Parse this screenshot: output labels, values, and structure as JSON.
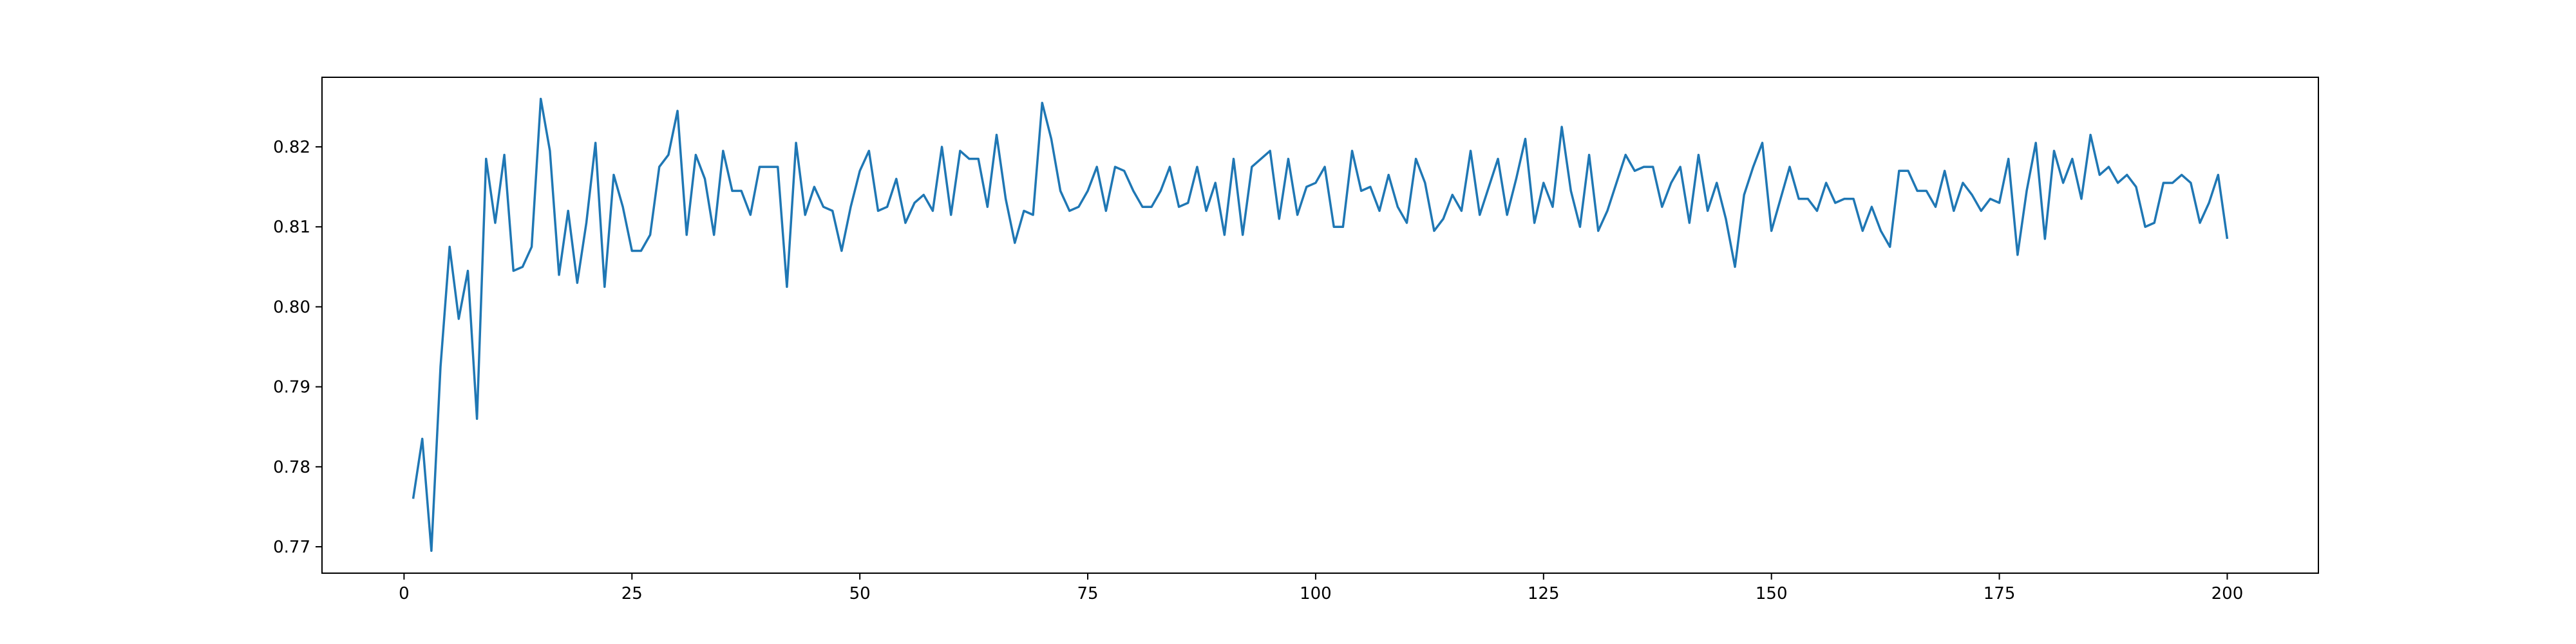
{
  "chart_data": {
    "type": "line",
    "title": "",
    "xlabel": "",
    "ylabel": "",
    "xlim": [
      -9,
      210
    ],
    "ylim": [
      0.7667,
      0.8287
    ],
    "x_ticks": [
      0,
      25,
      50,
      75,
      100,
      125,
      150,
      175,
      200
    ],
    "x_tick_labels": [
      "0",
      "25",
      "50",
      "75",
      "100",
      "125",
      "150",
      "175",
      "200"
    ],
    "y_ticks": [
      0.77,
      0.78,
      0.79,
      0.8,
      0.81,
      0.82
    ],
    "y_tick_labels": [
      "0.77",
      "0.78",
      "0.79",
      "0.80",
      "0.81",
      "0.82"
    ],
    "grid": false,
    "series": [
      {
        "color": "#1f77b4",
        "x": [
          1,
          2,
          3,
          4,
          5,
          6,
          7,
          8,
          9,
          10,
          11,
          12,
          13,
          14,
          15,
          16,
          17,
          18,
          19,
          20,
          21,
          22,
          23,
          24,
          25,
          26,
          27,
          28,
          29,
          30,
          31,
          32,
          33,
          34,
          35,
          36,
          37,
          38,
          39,
          40,
          41,
          42,
          43,
          44,
          45,
          46,
          47,
          48,
          49,
          50,
          51,
          52,
          53,
          54,
          55,
          56,
          57,
          58,
          59,
          60,
          61,
          62,
          63,
          64,
          65,
          66,
          67,
          68,
          69,
          70,
          71,
          72,
          73,
          74,
          75,
          76,
          77,
          78,
          79,
          80,
          81,
          82,
          83,
          84,
          85,
          86,
          87,
          88,
          89,
          90,
          91,
          92,
          93,
          94,
          95,
          96,
          97,
          98,
          99,
          100,
          101,
          102,
          103,
          104,
          105,
          106,
          107,
          108,
          109,
          110,
          111,
          112,
          113,
          114,
          115,
          116,
          117,
          118,
          119,
          120,
          121,
          122,
          123,
          124,
          125,
          126,
          127,
          128,
          129,
          130,
          131,
          132,
          133,
          134,
          135,
          136,
          137,
          138,
          139,
          140,
          141,
          142,
          143,
          144,
          145,
          146,
          147,
          148,
          149,
          150,
          151,
          152,
          153,
          154,
          155,
          156,
          157,
          158,
          159,
          160,
          161,
          162,
          163,
          164,
          165,
          166,
          167,
          168,
          169,
          170,
          171,
          172,
          173,
          174,
          175,
          176,
          177,
          178,
          179,
          180,
          181,
          182,
          183,
          184,
          185,
          186,
          187,
          188,
          189,
          190,
          191,
          192,
          193,
          194,
          195,
          196,
          197,
          198,
          199,
          200
        ],
        "values": [
          0.776,
          0.7835,
          0.7695,
          0.7925,
          0.8075,
          0.7985,
          0.8045,
          0.786,
          0.8185,
          0.8105,
          0.819,
          0.8045,
          0.805,
          0.8075,
          0.826,
          0.8195,
          0.804,
          0.812,
          0.803,
          0.8105,
          0.8205,
          0.8025,
          0.8165,
          0.8125,
          0.807,
          0.807,
          0.809,
          0.8175,
          0.819,
          0.8245,
          0.809,
          0.819,
          0.816,
          0.809,
          0.8195,
          0.8145,
          0.8145,
          0.8115,
          0.8175,
          0.8175,
          0.8175,
          0.8025,
          0.8205,
          0.8115,
          0.815,
          0.8125,
          0.812,
          0.807,
          0.8125,
          0.817,
          0.8195,
          0.812,
          0.8125,
          0.816,
          0.8105,
          0.813,
          0.814,
          0.812,
          0.82,
          0.8115,
          0.8195,
          0.8185,
          0.8185,
          0.8125,
          0.8215,
          0.8135,
          0.808,
          0.812,
          0.8115,
          0.8255,
          0.821,
          0.8145,
          0.812,
          0.8125,
          0.8145,
          0.8175,
          0.812,
          0.8175,
          0.817,
          0.8145,
          0.8125,
          0.8125,
          0.8145,
          0.8175,
          0.8125,
          0.813,
          0.8175,
          0.812,
          0.8155,
          0.809,
          0.8185,
          0.809,
          0.8175,
          0.8185,
          0.8195,
          0.811,
          0.8185,
          0.8115,
          0.815,
          0.8155,
          0.8175,
          0.81,
          0.81,
          0.8195,
          0.8145,
          0.815,
          0.812,
          0.8165,
          0.8125,
          0.8105,
          0.8185,
          0.8155,
          0.8095,
          0.811,
          0.814,
          0.812,
          0.8195,
          0.8115,
          0.815,
          0.8185,
          0.8115,
          0.816,
          0.821,
          0.8105,
          0.8155,
          0.8125,
          0.8225,
          0.8145,
          0.81,
          0.819,
          0.8095,
          0.812,
          0.8155,
          0.819,
          0.817,
          0.8175,
          0.8175,
          0.8125,
          0.8155,
          0.8175,
          0.8105,
          0.819,
          0.812,
          0.8155,
          0.811,
          0.805,
          0.814,
          0.8175,
          0.8205,
          0.8095,
          0.8135,
          0.8175,
          0.8135,
          0.8135,
          0.812,
          0.8155,
          0.813,
          0.8135,
          0.8135,
          0.8095,
          0.8125,
          0.8095,
          0.8075,
          0.817,
          0.817,
          0.8145,
          0.8145,
          0.8125,
          0.817,
          0.812,
          0.8155,
          0.814,
          0.812,
          0.8135,
          0.813,
          0.8185,
          0.8065,
          0.8145,
          0.8205,
          0.8085,
          0.8195,
          0.8155,
          0.8185,
          0.8135,
          0.8215,
          0.8165,
          0.8175,
          0.8155,
          0.8165,
          0.815,
          0.81,
          0.8105,
          0.8155,
          0.8155,
          0.8165,
          0.8155,
          0.8105,
          0.813,
          0.8165,
          0.8085
        ]
      }
    ]
  }
}
